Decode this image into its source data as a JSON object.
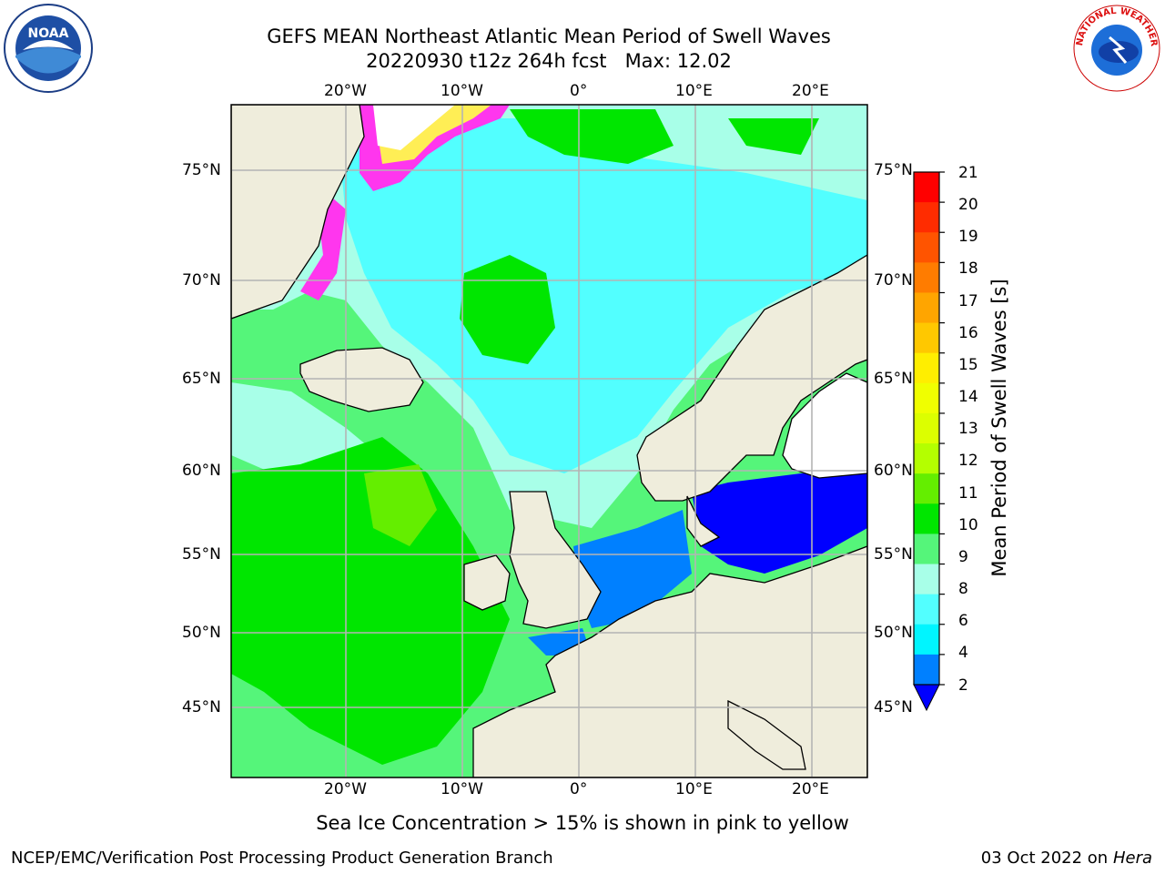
{
  "title": {
    "line1": "GEFS MEAN Northeast Atlantic Mean Period of Swell Waves",
    "line2": "20220930 t12z 264h fcst   Max: 12.02"
  },
  "map": {
    "lon_ticks_top": [
      "20°W",
      "10°W",
      "0°",
      "10°E",
      "20°E"
    ],
    "lon_ticks_bottom": [
      "20°W",
      "10°W",
      "0°",
      "10°E",
      "20°E"
    ],
    "lat_ticks_left": [
      "75°N",
      "70°N",
      "65°N",
      "60°N",
      "55°N",
      "50°N",
      "45°N"
    ],
    "lat_ticks_right": [
      "75°N",
      "70°N",
      "65°N",
      "60°N",
      "55°N",
      "50°N",
      "45°N"
    ],
    "colors": {
      "land": "#efeddc",
      "ice_pink": "#ff36ee",
      "ice_yellow": "#ffee55",
      "ice_white": "#ffffff",
      "grid": "#b4b4b4"
    }
  },
  "colorbar": {
    "label": "Mean Period of Swell Waves [s]",
    "ticks": [
      "21",
      "20",
      "19",
      "18",
      "17",
      "16",
      "15",
      "14",
      "13",
      "12",
      "11",
      "10",
      "9",
      "8",
      "6",
      "4",
      "2"
    ],
    "colors_top_to_bottom": [
      "#ff0000",
      "#ff2c00",
      "#ff5400",
      "#ff7c00",
      "#ffa500",
      "#ffc800",
      "#ffee00",
      "#f0ff00",
      "#dcff00",
      "#b4ff00",
      "#64ee00",
      "#00e600",
      "#55f57a",
      "#a8ffe8",
      "#52ffff",
      "#00f5ff",
      "#0080ff"
    ],
    "under_color": "#0000ff"
  },
  "note": "Sea Ice Concentration > 15% is shown in pink to yellow",
  "footer": {
    "left": "NCEP/EMC/Verification Post Processing Product Generation Branch",
    "right_prefix": "03 Oct 2022 on ",
    "right_host": "Hera"
  },
  "logos": {
    "noaa_text": "NOAA",
    "nws_text": "NATIONAL WEATHER SERVICE"
  }
}
